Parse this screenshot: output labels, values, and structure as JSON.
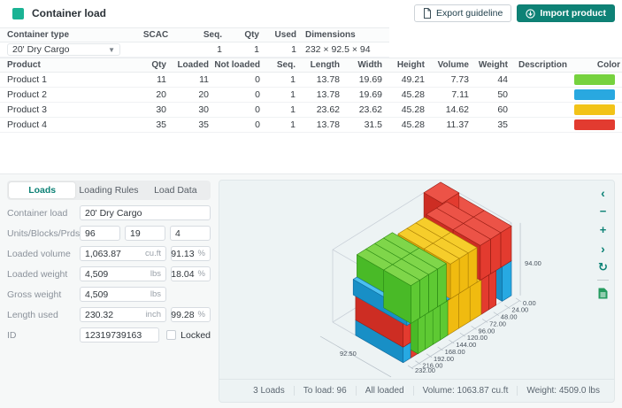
{
  "header": {
    "title": "Container load",
    "export_button": "Export guideline",
    "import_button": "Import product"
  },
  "accent": {
    "teal": "#0e8276",
    "title_square": "#1ab394"
  },
  "container_table": {
    "headers": {
      "type": "Container type",
      "scac": "SCAC",
      "seq": "Seq.",
      "qty": "Qty",
      "used": "Used",
      "dimensions": "Dimensions"
    },
    "row": {
      "type": "20' Dry Cargo",
      "scac": "",
      "seq": "1",
      "qty": "1",
      "used": "1",
      "dimensions": "232 × 92.5 × 94"
    }
  },
  "product_table": {
    "headers": {
      "product": "Product",
      "qty": "Qty",
      "loaded": "Loaded",
      "not_loaded": "Not loaded",
      "seq": "Seq.",
      "length": "Length",
      "width": "Width",
      "height": "Height",
      "volume": "Volume",
      "weight": "Weight",
      "description": "Description",
      "color": "Color"
    },
    "rows": [
      {
        "product": "Product 1",
        "qty": "11",
        "loaded": "11",
        "not_loaded": "0",
        "seq": "1",
        "length": "13.78",
        "width": "19.69",
        "height": "49.21",
        "volume": "7.73",
        "weight": "44",
        "description": "",
        "color": "#76d23e"
      },
      {
        "product": "Product 2",
        "qty": "20",
        "loaded": "20",
        "not_loaded": "0",
        "seq": "1",
        "length": "13.78",
        "width": "19.69",
        "height": "45.28",
        "volume": "7.11",
        "weight": "50",
        "description": "",
        "color": "#29a8e0"
      },
      {
        "product": "Product 3",
        "qty": "30",
        "loaded": "30",
        "not_loaded": "0",
        "seq": "1",
        "length": "23.62",
        "width": "23.62",
        "height": "45.28",
        "volume": "14.62",
        "weight": "60",
        "description": "",
        "color": "#f2c318"
      },
      {
        "product": "Product 4",
        "qty": "35",
        "loaded": "35",
        "not_loaded": "0",
        "seq": "1",
        "length": "13.78",
        "width": "31.5",
        "height": "45.28",
        "volume": "11.37",
        "weight": "35",
        "description": "",
        "color": "#e23b30"
      }
    ]
  },
  "tabs": {
    "loads": "Loads",
    "loading_rules": "Loading Rules",
    "load_data": "Load Data"
  },
  "form": {
    "container_load": {
      "label": "Container load",
      "value": "20' Dry Cargo"
    },
    "units": {
      "label": "Units/Blocks/Prds",
      "v1": "96",
      "v2": "19",
      "v3": "4"
    },
    "loaded_volume": {
      "label": "Loaded volume",
      "value": "1,063.87",
      "unit": "cu.ft",
      "pct": "91.13",
      "pct_unit": "%"
    },
    "loaded_weight": {
      "label": "Loaded weight",
      "value": "4,509",
      "unit": "lbs",
      "pct": "18.04",
      "pct_unit": "%"
    },
    "gross_weight": {
      "label": "Gross weight",
      "value": "4,509",
      "unit": "lbs"
    },
    "length_used": {
      "label": "Length used",
      "value": "230.32",
      "unit": "inch",
      "pct": "99.28",
      "pct_unit": "%"
    },
    "id": {
      "label": "ID",
      "value": "12319739163",
      "locked_label": "Locked"
    }
  },
  "viewer": {
    "toolbar": {
      "prev": "‹",
      "zoom_out": "−",
      "zoom_in": "+",
      "next": "›",
      "reset": "↻"
    },
    "status": {
      "loads": "3 Loads",
      "to_load": "To load: 96",
      "all_loaded": "All loaded",
      "volume": "Volume: 1063.87 cu.ft",
      "weight": "Weight: 4509.0 lbs"
    }
  },
  "chart_data": {
    "type": "3d-load-plan",
    "scene": {
      "container": {
        "length": 232,
        "width": 92.5,
        "height": 94
      },
      "ticks": [
        0,
        24,
        48,
        72,
        96,
        120,
        144,
        168,
        192,
        216,
        232
      ],
      "width_label": "92.50",
      "height_label": "94.00",
      "colors": {
        "green": {
          "top": "#7fd64a",
          "front": "#5ec933",
          "end": "#49ba27",
          "stroke": "#2c8a14"
        },
        "blue": {
          "top": "#4cc0ee",
          "front": "#27a9e2",
          "end": "#188fc6",
          "stroke": "#0e6a9e"
        },
        "yellow": {
          "top": "#f6cd2b",
          "front": "#f0bb10",
          "end": "#dda60a",
          "stroke": "#a87d05"
        },
        "red": {
          "top": "#ec5347",
          "front": "#e33b2f",
          "end": "#cd2d23",
          "stroke": "#991e15"
        }
      },
      "boxes": [
        [
          0,
          30,
          0,
          16,
          62,
          20,
          "blue"
        ],
        [
          0,
          30,
          20,
          16,
          62,
          31,
          "red"
        ],
        [
          16,
          34,
          0,
          15,
          58,
          50,
          "red"
        ],
        [
          31,
          28,
          0,
          16,
          32,
          45,
          "green"
        ],
        [
          47,
          28,
          0,
          16,
          32,
          45,
          "green"
        ],
        [
          63,
          28,
          0,
          16,
          32,
          45,
          "green"
        ],
        [
          79,
          28,
          0,
          16,
          32,
          45,
          "green"
        ],
        [
          31,
          60,
          0,
          16,
          32.5,
          45,
          "green"
        ],
        [
          47,
          60,
          0,
          16,
          32.5,
          45,
          "green"
        ],
        [
          63,
          60,
          0,
          16,
          32.5,
          45,
          "green"
        ],
        [
          79,
          60,
          0,
          16,
          32.5,
          45,
          "green"
        ],
        [
          16,
          22,
          45,
          19,
          35,
          49,
          "green"
        ],
        [
          35,
          22,
          45,
          19,
          35,
          49,
          "green"
        ],
        [
          54,
          22,
          45,
          19,
          35,
          49,
          "green"
        ],
        [
          73,
          22,
          45,
          19,
          35,
          49,
          "green"
        ],
        [
          16,
          57,
          45,
          19,
          35.5,
          49,
          "green"
        ],
        [
          35,
          57,
          45,
          19,
          35.5,
          49,
          "green"
        ],
        [
          54,
          57,
          45,
          19,
          35.5,
          49,
          "green"
        ],
        [
          73,
          57,
          45,
          19,
          35.5,
          49,
          "green"
        ],
        [
          8,
          22,
          45,
          8,
          70,
          20,
          "blue"
        ],
        [
          92,
          22,
          45,
          9,
          70,
          20,
          "blue"
        ],
        [
          158,
          22,
          45,
          7,
          70,
          20,
          "blue"
        ],
        [
          101,
          24,
          45,
          19,
          34,
          45,
          "yellow"
        ],
        [
          120,
          24,
          45,
          19,
          34,
          45,
          "yellow"
        ],
        [
          139,
          24,
          45,
          19,
          34,
          45,
          "yellow"
        ],
        [
          101,
          58,
          45,
          19,
          34.5,
          45,
          "yellow"
        ],
        [
          120,
          58,
          45,
          19,
          34.5,
          45,
          "yellow"
        ],
        [
          139,
          58,
          45,
          19,
          34.5,
          45,
          "yellow"
        ],
        [
          95,
          46,
          0,
          24,
          23,
          45,
          "yellow"
        ],
        [
          119,
          46,
          0,
          24,
          23,
          45,
          "yellow"
        ],
        [
          143,
          46,
          0,
          24,
          23,
          45,
          "yellow"
        ],
        [
          95,
          69,
          0,
          24,
          23.5,
          45,
          "yellow"
        ],
        [
          119,
          69,
          0,
          24,
          23.5,
          45,
          "yellow"
        ],
        [
          143,
          69,
          0,
          24,
          23.5,
          45,
          "yellow"
        ],
        [
          167,
          30,
          0,
          16,
          31,
          45,
          "red"
        ],
        [
          183,
          30,
          0,
          16,
          31,
          45,
          "red"
        ],
        [
          167,
          61,
          0,
          16,
          31.5,
          45,
          "red"
        ],
        [
          183,
          61,
          0,
          16,
          31.5,
          45,
          "red"
        ],
        [
          165,
          22,
          45,
          22,
          35,
          45,
          "red"
        ],
        [
          187,
          22,
          45,
          22,
          35,
          45,
          "red"
        ],
        [
          209,
          22,
          45,
          23,
          35,
          45,
          "red"
        ],
        [
          165,
          57,
          45,
          22,
          35.5,
          45,
          "red"
        ],
        [
          187,
          57,
          45,
          22,
          35.5,
          45,
          "red"
        ],
        [
          209,
          57,
          45,
          23,
          35.5,
          45,
          "red"
        ],
        [
          196,
          0,
          55,
          36,
          24,
          39,
          "red"
        ],
        [
          212,
          37,
          0,
          20,
          18,
          45,
          "blue"
        ],
        [
          212,
          55,
          0,
          20,
          19,
          45,
          "blue"
        ],
        [
          212,
          74,
          0,
          20,
          18.5,
          45,
          "blue"
        ]
      ]
    }
  }
}
